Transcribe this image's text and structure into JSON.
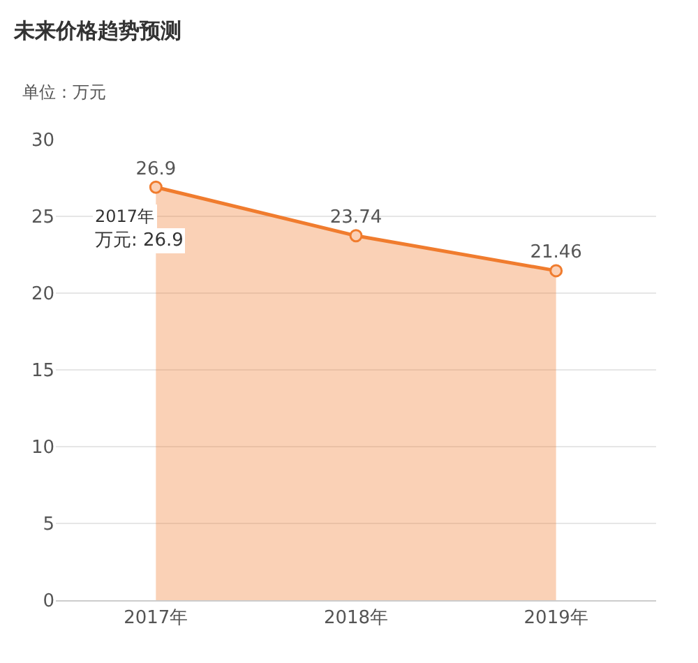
{
  "chart_data": {
    "type": "area",
    "title": "未来价格趋势预测",
    "ylabel": "单位：万元",
    "categories": [
      "2017年",
      "2018年",
      "2019年"
    ],
    "series": [
      {
        "color": "#f07c2e",
        "values": [
          26.9,
          23.74,
          21.46
        ]
      }
    ],
    "ylim": [
      0,
      30
    ],
    "yticks": [
      0,
      5,
      10,
      15,
      20,
      25,
      30
    ],
    "grid": "y",
    "data_labels": true,
    "marker": "circle",
    "annotations": [
      "2017年",
      "万元: 26.9"
    ]
  }
}
